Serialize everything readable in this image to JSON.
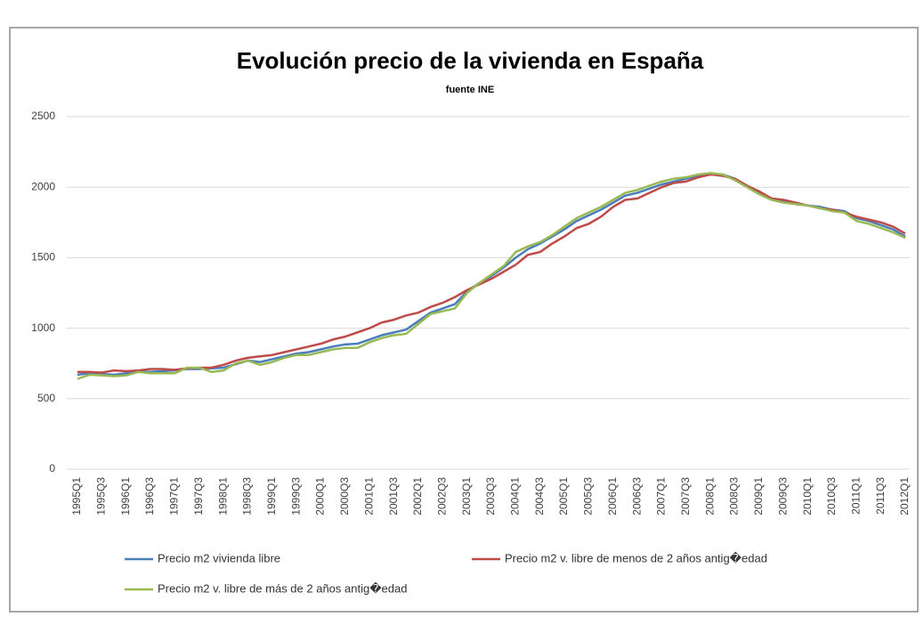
{
  "chart_data": {
    "type": "line",
    "title": "Evolución precio de la vivienda en España",
    "subtitle": "fuente INE",
    "categories": [
      "1995Q1",
      null,
      "1995Q3",
      null,
      "1996Q1",
      null,
      "1996Q3",
      null,
      "1997Q1",
      null,
      "1997Q3",
      null,
      "1998Q1",
      null,
      "1998Q3",
      null,
      "1999Q1",
      null,
      "1999Q3",
      null,
      "2000Q1",
      null,
      "2000Q3",
      null,
      "2001Q1",
      null,
      "2001Q3",
      null,
      "2002Q1",
      null,
      "2002Q3",
      null,
      "2003Q1",
      null,
      "2003Q3",
      null,
      "2004Q1",
      null,
      "2004Q3",
      null,
      "2005Q1",
      null,
      "2005Q3",
      null,
      "2006Q1",
      null,
      "2006Q3",
      null,
      "2007Q1",
      null,
      "2007Q3",
      null,
      "2008Q1",
      null,
      "2008Q3",
      null,
      "2009Q1",
      null,
      "2009Q3",
      null,
      "2010Q1",
      null,
      "2010Q3",
      null,
      "2011Q1",
      null,
      "2011Q3",
      null,
      "2012Q1"
    ],
    "series": [
      {
        "name": "Precio m2 vivienda libre",
        "color": "#4a7ebb",
        "values": [
          670,
          680,
          675,
          670,
          680,
          690,
          690,
          695,
          700,
          710,
          710,
          715,
          720,
          745,
          770,
          760,
          780,
          800,
          820,
          830,
          850,
          870,
          885,
          890,
          920,
          950,
          970,
          990,
          1050,
          1110,
          1140,
          1170,
          1260,
          1320,
          1370,
          1430,
          1500,
          1560,
          1600,
          1650,
          1700,
          1760,
          1800,
          1840,
          1890,
          1940,
          1960,
          1990,
          2020,
          2040,
          2060,
          2080,
          2090,
          2090,
          2060,
          2010,
          1960,
          1920,
          1900,
          1880,
          1870,
          1860,
          1840,
          1830,
          1780,
          1760,
          1730,
          1700,
          1650
        ]
      },
      {
        "name": "Precio m2 v. libre de menos de 2 años antig�edad",
        "color": "#be4b48",
        "values": [
          690,
          690,
          685,
          700,
          695,
          700,
          710,
          710,
          705,
          715,
          720,
          720,
          740,
          770,
          790,
          800,
          810,
          830,
          850,
          870,
          890,
          920,
          940,
          970,
          1000,
          1040,
          1060,
          1090,
          1110,
          1150,
          1180,
          1220,
          1270,
          1310,
          1350,
          1400,
          1450,
          1520,
          1540,
          1600,
          1650,
          1710,
          1740,
          1790,
          1860,
          1910,
          1920,
          1960,
          2000,
          2030,
          2040,
          2070,
          2090,
          2080,
          2060,
          2010,
          1970,
          1920,
          1910,
          1890,
          1870,
          1850,
          1840,
          1820,
          1790,
          1770,
          1750,
          1720,
          1670
        ]
      },
      {
        "name": "Precio m2 v. libre de más de 2 años antig�edad",
        "color": "#98b954",
        "values": [
          640,
          670,
          665,
          660,
          665,
          690,
          680,
          680,
          680,
          720,
          720,
          690,
          700,
          750,
          770,
          740,
          760,
          790,
          810,
          810,
          830,
          850,
          860,
          860,
          900,
          930,
          950,
          960,
          1030,
          1100,
          1120,
          1140,
          1250,
          1320,
          1380,
          1440,
          1540,
          1580,
          1610,
          1660,
          1720,
          1780,
          1820,
          1860,
          1910,
          1960,
          1980,
          2010,
          2040,
          2060,
          2070,
          2090,
          2100,
          2090,
          2050,
          2000,
          1950,
          1910,
          1890,
          1880,
          1870,
          1850,
          1830,
          1820,
          1760,
          1740,
          1710,
          1680,
          1640
        ]
      }
    ],
    "ylim": [
      0,
      2500
    ],
    "yticks": [
      0,
      500,
      1000,
      1500,
      2000,
      2500
    ],
    "grid": true
  }
}
